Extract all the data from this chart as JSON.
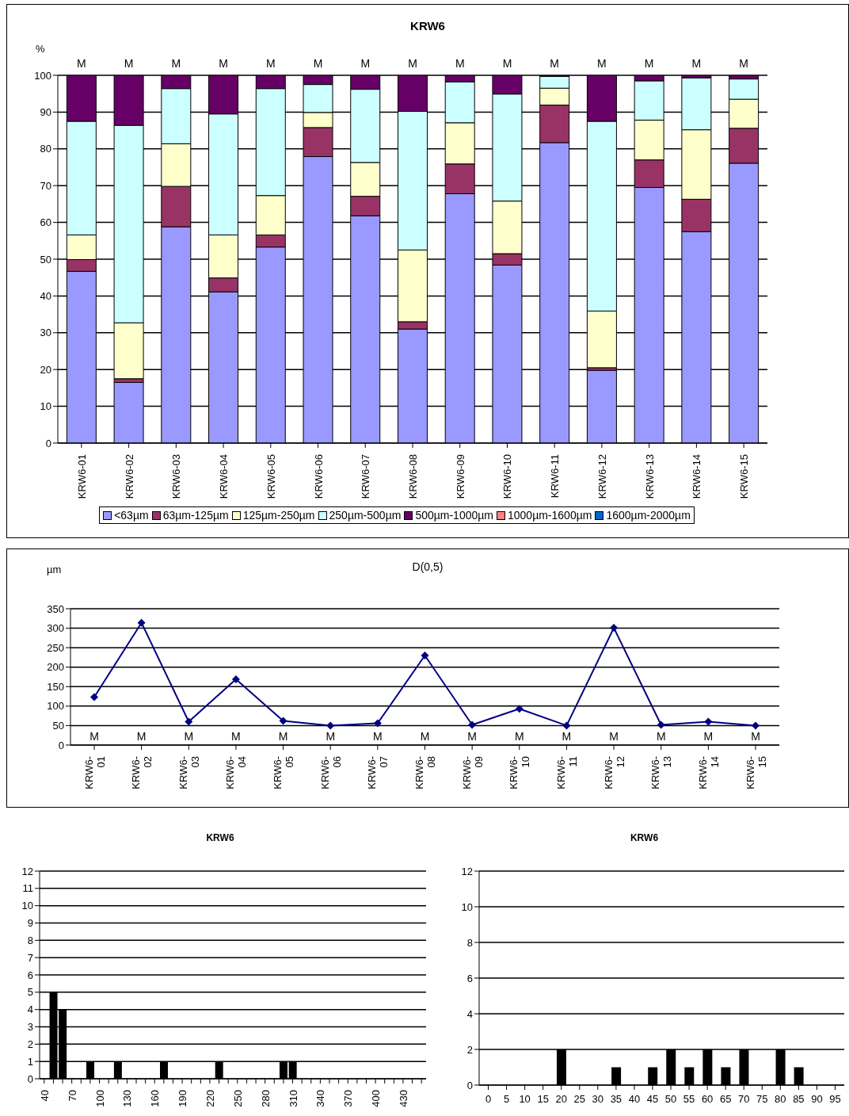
{
  "chart_data": [
    {
      "type": "bar",
      "title": "KRW6",
      "ylabel": "%",
      "categories": [
        "KRW6-01",
        "KRW6-02",
        "KRW6-03",
        "KRW6-04",
        "KRW6-05",
        "KRW6-06",
        "KRW6-07",
        "KRW6-08",
        "KRW6-09",
        "KRW6-10",
        "KRW6-11",
        "KRW6-12",
        "KRW6-13",
        "KRW6-14",
        "KRW6-15"
      ],
      "stacked": true,
      "series": [
        {
          "name": "<63µm",
          "color": "#9999ff",
          "values": [
            46.7,
            16.5,
            58.8,
            41.1,
            53.3,
            77.9,
            61.8,
            31.0,
            67.8,
            48.4,
            81.7,
            19.8,
            69.5,
            57.5,
            76.1
          ]
        },
        {
          "name": "63µm-125µm",
          "color": "#993366",
          "values": [
            3.2,
            1.0,
            11.0,
            3.8,
            3.3,
            7.9,
            5.3,
            2.0,
            8.1,
            3.1,
            10.2,
            0.7,
            7.5,
            8.8,
            9.5
          ]
        },
        {
          "name": "125µm-250µm",
          "color": "#ffffcc",
          "values": [
            6.7,
            15.2,
            11.6,
            11.7,
            10.7,
            4.1,
            9.2,
            19.5,
            11.2,
            14.3,
            4.6,
            15.4,
            10.8,
            18.9,
            7.9
          ]
        },
        {
          "name": "250µm-500µm",
          "color": "#ccffff",
          "values": [
            30.9,
            53.7,
            15.0,
            32.9,
            29.1,
            7.6,
            19.9,
            37.7,
            11.1,
            29.1,
            3.2,
            51.6,
            10.7,
            14.1,
            5.5
          ]
        },
        {
          "name": "500µm-1000µm",
          "color": "#660066",
          "values": [
            12.5,
            13.6,
            3.6,
            10.5,
            3.6,
            2.5,
            3.8,
            9.8,
            1.8,
            5.1,
            0.3,
            12.5,
            1.5,
            0.7,
            1.0
          ]
        },
        {
          "name": "1000µm-1600µm",
          "color": "#ff8080",
          "values": [
            0,
            0,
            0,
            0,
            0,
            0,
            0,
            0,
            0,
            0,
            0,
            0,
            0,
            0,
            0
          ]
        },
        {
          "name": "1600µm-2000µm",
          "color": "#0066cc",
          "values": [
            0,
            0,
            0,
            0,
            0,
            0,
            0,
            0,
            0,
            0,
            0,
            0,
            0,
            0,
            0
          ]
        }
      ],
      "ylim": [
        0,
        100
      ],
      "yticks": [
        0,
        10,
        20,
        30,
        40,
        50,
        60,
        70,
        80,
        90,
        100
      ],
      "grid": "y",
      "legend": "bottom",
      "annotations": [
        "M",
        "M",
        "M",
        "M",
        "M",
        "M",
        "M",
        "M",
        "M",
        "M",
        "M",
        "M",
        "M",
        "M",
        "M"
      ]
    },
    {
      "type": "line",
      "title": "D(0,5)",
      "ylabel": "µm",
      "categories": [
        "KRW6-01",
        "KRW6-02",
        "KRW6-03",
        "KRW6-04",
        "KRW6-05",
        "KRW6-06",
        "KRW6-07",
        "KRW6-08",
        "KRW6-09",
        "KRW6-10",
        "KRW6-11",
        "KRW6-12",
        "KRW6-13",
        "KRW6-14",
        "KRW6-15"
      ],
      "series": [
        {
          "color": "#000080",
          "values": [
            123,
            314,
            60,
            169,
            62,
            50,
            56,
            230,
            52,
            93,
            50,
            301,
            52,
            60,
            50
          ]
        }
      ],
      "marker": "diamond",
      "line_style": "solid",
      "ylim": [
        0,
        350
      ],
      "yticks": [
        0,
        50,
        100,
        150,
        200,
        250,
        300,
        350
      ],
      "grid": "y",
      "annotations": [
        "M",
        "M",
        "M",
        "M",
        "M",
        "M",
        "M",
        "M",
        "M",
        "M",
        "M",
        "M",
        "M",
        "M",
        "M"
      ]
    },
    {
      "type": "bar",
      "title": "KRW6",
      "categories": [
        "40",
        null,
        null,
        "70",
        null,
        null,
        "100",
        null,
        null,
        "130",
        null,
        null,
        "160",
        null,
        null,
        "190",
        null,
        null,
        "220",
        null,
        null,
        "250",
        null,
        null,
        "280",
        null,
        null,
        "310",
        null,
        null,
        "340",
        null,
        null,
        "370",
        null,
        null,
        "400",
        null,
        null,
        "430",
        null,
        null
      ],
      "values": [
        0,
        5,
        4,
        0,
        0,
        1,
        0,
        0,
        1,
        0,
        0,
        0,
        0,
        1,
        0,
        0,
        0,
        0,
        0,
        1,
        0,
        0,
        0,
        0,
        0,
        0,
        1,
        1,
        0,
        0,
        0,
        0,
        0,
        0,
        0,
        0,
        0,
        0,
        0,
        0,
        0,
        0
      ],
      "color": "#000000",
      "ylim": [
        0,
        12
      ],
      "yticks": [
        0,
        1,
        2,
        3,
        4,
        5,
        6,
        7,
        8,
        9,
        10,
        11,
        12
      ],
      "grid": "y"
    },
    {
      "type": "bar",
      "title": "KRW6",
      "categories": [
        "0",
        "5",
        "10",
        "15",
        "20",
        "25",
        "30",
        "35",
        "40",
        "45",
        "50",
        "55",
        "60",
        "65",
        "70",
        "75",
        "80",
        "85",
        "90",
        "95"
      ],
      "values": [
        0,
        0,
        0,
        0,
        2,
        0,
        0,
        1,
        0,
        1,
        2,
        1,
        2,
        1,
        2,
        0,
        2,
        1,
        0,
        0
      ],
      "color": "#000000",
      "ylim": [
        0,
        12
      ],
      "yticks": [
        0,
        2,
        4,
        6,
        8,
        10,
        12
      ],
      "grid": "y"
    }
  ]
}
